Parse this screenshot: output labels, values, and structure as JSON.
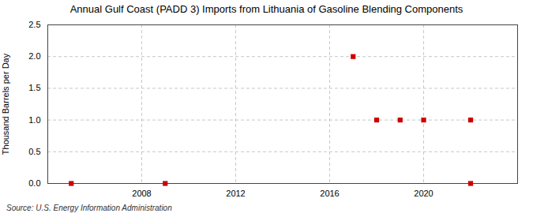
{
  "chart_data": {
    "type": "scatter",
    "title": "Annual Gulf Coast (PADD 3) Imports from Lithuania of Gasoline Blending Components",
    "y_label": "Thousand Barrels per Day",
    "annotations": [
      "Source: U.S. Energy Information Administration"
    ],
    "x": [
      2005,
      2009,
      2017,
      2018,
      2019,
      2020,
      2022,
      2022
    ],
    "values": [
      0.0,
      0.0,
      2.0,
      1.0,
      1.0,
      1.0,
      1.0,
      0.0
    ],
    "color": "#cc0000",
    "marker": "square",
    "xlim": [
      2004,
      2024
    ],
    "xticks": [
      2008,
      2012,
      2016,
      2020
    ],
    "ylim": [
      0.0,
      2.5
    ],
    "yticks": [
      {
        "value": 0,
        "label": "0.0"
      },
      0.5,
      {
        "value": 1,
        "label": "1.0"
      },
      1.5,
      {
        "value": 2,
        "label": "2.0"
      },
      2.5
    ],
    "grid": true
  }
}
